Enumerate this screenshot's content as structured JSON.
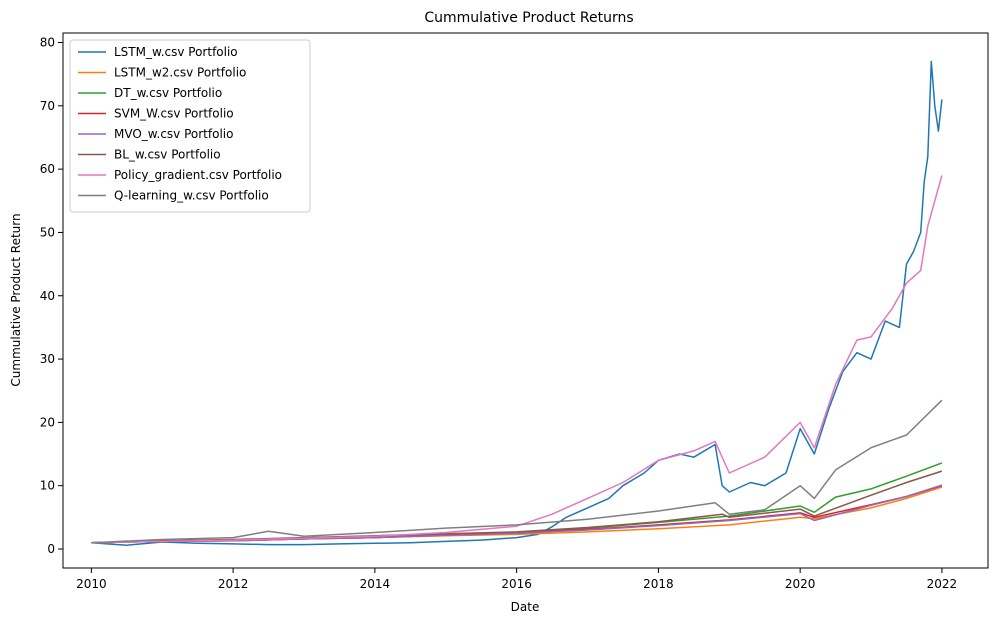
{
  "chart_data": {
    "type": "line",
    "title": "Cummulative Product Returns",
    "xlabel": "Date",
    "ylabel": "Cummulative Product Return",
    "xlim": [
      2009.6,
      2022.65
    ],
    "ylim": [
      -3.0,
      81.5
    ],
    "xticks": [
      2010,
      2012,
      2014,
      2016,
      2018,
      2020,
      2022
    ],
    "yticks": [
      0,
      10,
      20,
      30,
      40,
      50,
      60,
      70,
      80
    ],
    "legend": "top-left",
    "grid": false,
    "series": [
      {
        "name": "LSTM_w.csv Portfolio",
        "color": "#1f77b4",
        "x": [
          2010.0,
          2010.5,
          2011.0,
          2011.5,
          2012.0,
          2012.5,
          2013.0,
          2013.5,
          2014.0,
          2014.5,
          2015.0,
          2015.5,
          2016.0,
          2016.3,
          2016.5,
          2016.7,
          2017.0,
          2017.3,
          2017.5,
          2017.8,
          2018.0,
          2018.3,
          2018.5,
          2018.8,
          2018.9,
          2019.0,
          2019.3,
          2019.5,
          2019.8,
          2020.0,
          2020.2,
          2020.4,
          2020.6,
          2020.8,
          2021.0,
          2021.2,
          2021.4,
          2021.5,
          2021.6,
          2021.7,
          2021.75,
          2021.8,
          2021.85,
          2021.9,
          2021.95,
          2022.0
        ],
        "y": [
          1.0,
          0.6,
          1.1,
          0.9,
          0.8,
          0.7,
          0.7,
          0.8,
          0.9,
          1.0,
          1.2,
          1.4,
          1.8,
          2.3,
          3.5,
          5.0,
          6.5,
          8.0,
          10.0,
          12.0,
          14.0,
          15.0,
          14.5,
          16.5,
          10.0,
          9.0,
          10.5,
          10.0,
          12.0,
          19.0,
          15.0,
          22.0,
          28.0,
          31.0,
          30.0,
          36.0,
          35.0,
          45.0,
          47.0,
          50.0,
          58.0,
          62.0,
          77.0,
          70.0,
          66.0,
          71.0
        ]
      },
      {
        "name": "LSTM_w2.csv Portfolio",
        "color": "#ff7f0e",
        "x": [
          2010.0,
          2011.0,
          2012.0,
          2013.0,
          2014.0,
          2015.0,
          2016.0,
          2017.0,
          2018.0,
          2019.0,
          2020.0,
          2020.2,
          2021.0,
          2021.5,
          2022.0
        ],
        "y": [
          1.0,
          1.2,
          1.3,
          1.6,
          1.8,
          2.1,
          2.3,
          2.7,
          3.2,
          3.8,
          5.0,
          4.8,
          6.5,
          8.0,
          9.8
        ]
      },
      {
        "name": "DT_w.csv Portfolio",
        "color": "#2ca02c",
        "x": [
          2010.0,
          2011.0,
          2012.0,
          2013.0,
          2014.0,
          2015.0,
          2016.0,
          2017.0,
          2018.0,
          2019.0,
          2020.0,
          2020.2,
          2020.5,
          2021.0,
          2021.5,
          2022.0
        ],
        "y": [
          1.0,
          1.2,
          1.4,
          1.6,
          1.9,
          2.3,
          2.6,
          3.3,
          4.2,
          5.2,
          6.8,
          5.8,
          8.2,
          9.5,
          11.5,
          13.6
        ]
      },
      {
        "name": "SVM_W.csv Portfolio",
        "color": "#d62728",
        "x": [
          2010.0,
          2011.0,
          2012.0,
          2013.0,
          2014.0,
          2015.0,
          2016.0,
          2017.0,
          2018.0,
          2019.0,
          2020.0,
          2020.2,
          2021.0,
          2021.5,
          2022.0
        ],
        "y": [
          1.0,
          1.2,
          1.3,
          1.6,
          1.8,
          2.2,
          2.5,
          3.1,
          3.8,
          4.6,
          5.7,
          5.0,
          7.0,
          8.3,
          10.0
        ]
      },
      {
        "name": "MVO_w.csv Portfolio",
        "color": "#9467bd",
        "x": [
          2010.0,
          2011.0,
          2012.0,
          2013.0,
          2014.0,
          2015.0,
          2016.0,
          2017.0,
          2018.0,
          2019.0,
          2020.0,
          2020.2,
          2021.0,
          2021.5,
          2022.0
        ],
        "y": [
          1.0,
          1.2,
          1.3,
          1.6,
          1.8,
          2.2,
          2.5,
          3.0,
          3.7,
          4.5,
          5.6,
          4.5,
          6.9,
          8.3,
          10.1
        ]
      },
      {
        "name": "BL_w.csv Portfolio",
        "color": "#8c564b",
        "x": [
          2010.0,
          2011.0,
          2012.0,
          2013.0,
          2014.0,
          2015.0,
          2016.0,
          2017.0,
          2018.0,
          2018.9,
          2019.0,
          2020.0,
          2020.2,
          2021.0,
          2021.5,
          2022.0
        ],
        "y": [
          1.0,
          1.3,
          1.5,
          1.8,
          2.1,
          2.4,
          2.7,
          3.4,
          4.3,
          5.5,
          5.0,
          6.3,
          5.2,
          8.5,
          10.5,
          12.3
        ]
      },
      {
        "name": "Policy_gradient.csv Portfolio",
        "color": "#e377c2",
        "x": [
          2010.0,
          2011.0,
          2012.0,
          2013.0,
          2014.0,
          2015.0,
          2016.0,
          2016.5,
          2017.0,
          2017.5,
          2018.0,
          2018.5,
          2018.8,
          2019.0,
          2019.5,
          2020.0,
          2020.2,
          2020.5,
          2020.8,
          2021.0,
          2021.3,
          2021.5,
          2021.7,
          2021.8,
          2021.9,
          2022.0
        ],
        "y": [
          1.0,
          1.2,
          1.4,
          1.7,
          2.0,
          2.6,
          3.6,
          5.5,
          8.0,
          10.5,
          14.0,
          15.5,
          17.0,
          12.0,
          14.5,
          20.0,
          16.0,
          26.0,
          33.0,
          33.5,
          38.0,
          42.0,
          44.0,
          51.0,
          55.0,
          59.0
        ]
      },
      {
        "name": "Q-learning_w.csv Portfolio",
        "color": "#7f7f7f",
        "x": [
          2010.0,
          2011.0,
          2012.0,
          2012.5,
          2013.0,
          2014.0,
          2015.0,
          2016.0,
          2017.0,
          2018.0,
          2018.8,
          2019.0,
          2019.5,
          2020.0,
          2020.2,
          2020.5,
          2021.0,
          2021.5,
          2022.0
        ],
        "y": [
          1.0,
          1.5,
          1.8,
          2.8,
          2.0,
          2.6,
          3.3,
          3.8,
          4.7,
          6.0,
          7.3,
          5.5,
          6.2,
          10.0,
          8.0,
          12.5,
          16.0,
          18.0,
          23.5
        ]
      }
    ]
  }
}
